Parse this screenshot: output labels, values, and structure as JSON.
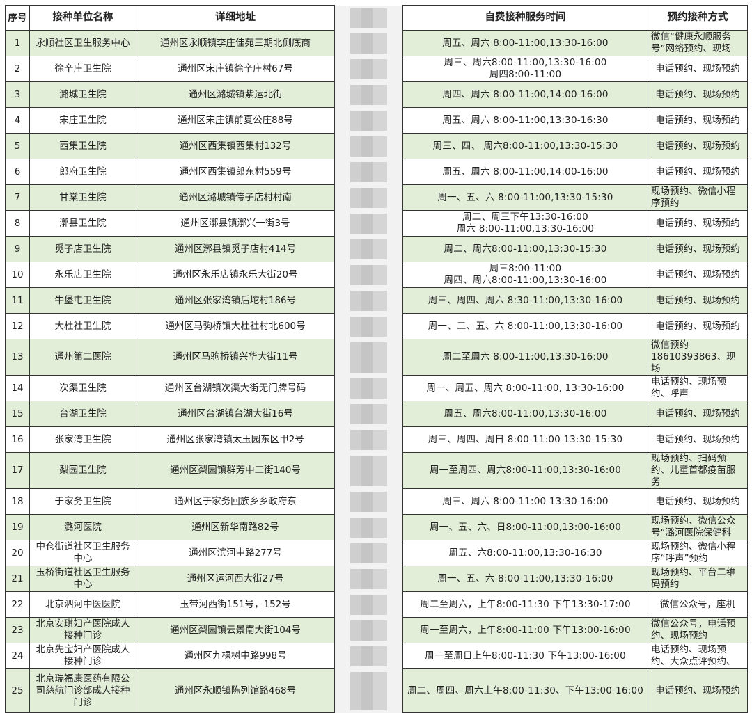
{
  "headers": {
    "seq": "序号",
    "name": "接种单位名称",
    "address": "详细地址",
    "phone": "",
    "time": "自费接种服务时间",
    "method": "预约接种方式"
  },
  "colors": {
    "row_green": "#e3eed9",
    "border": "#333333"
  },
  "rows": [
    {
      "seq": "1",
      "name": "永顺社区卫生服务中心",
      "address": "通州区永顺镇李庄佳苑三期北侧底商",
      "time": "周五、周六 8:00-11:00,13:30-16:00",
      "method": "微信“健康永顺服务号”网络预约、现场"
    },
    {
      "seq": "2",
      "name": "徐辛庄卫生院",
      "address": "通州区宋庄镇徐辛庄村67号",
      "time": "周三、周六8:00-11:00,13:30-16:00\n周四8:00-11:00",
      "method": "电话预约、现场预约"
    },
    {
      "seq": "3",
      "name": "潞城卫生院",
      "address": "通州区潞城镇紫运北街",
      "time": "周四、周六 8:00-11:00,14:00-16:00",
      "method": "电话预约、现场预约"
    },
    {
      "seq": "4",
      "name": "宋庄卫生院",
      "address": "通州区宋庄镇前夏公庄88号",
      "time": "周五、周六 8:00-11:00,13:30-16:30",
      "method": "电话预约、现场预约"
    },
    {
      "seq": "5",
      "name": "西集卫生院",
      "address": "通州区西集镇西集村132号",
      "time": "周三、四、 周六8:00-11:00,13:30-15:30",
      "method": "电话预约、现场预约"
    },
    {
      "seq": "6",
      "name": "郎府卫生院",
      "address": "通州区西集镇郎东村559号",
      "time": "周五、周六 8:00-11:00,14:00-16:00",
      "method": "电话预约、现场预约"
    },
    {
      "seq": "7",
      "name": "甘棠卫生院",
      "address": "通州区潞城镇侉子店村村南",
      "time": "周一、五、六 8:00-11:00,13:30-15:30",
      "method": "现场预约、微信小程序预约"
    },
    {
      "seq": "8",
      "name": "漷县卫生院",
      "address": "通州区漷县镇漷兴一街3号",
      "time": "周二、周三下午13:30-16:00\n周六 8:00-11:00,13:30-16:00",
      "method": "电话预约、现场预约"
    },
    {
      "seq": "9",
      "name": "觅子店卫生院",
      "address": "通州区漷县镇觅子店村414号",
      "time": "周二、周六8:00-11:00,13:30-15:30",
      "method": "电话预约、现场预约"
    },
    {
      "seq": "10",
      "name": "永乐店卫生院",
      "address": "通州区永乐店镇永乐大街20号",
      "time": "周三8:00-11:00\n周四、周六8:00-11:00,13:30-16:00",
      "method": "电话预约、现场预约"
    },
    {
      "seq": "11",
      "name": "牛堡屯卫生院",
      "address": "通州区张家湾镇后坨村186号",
      "time": "周三、周四、周六 8:30-11:00,13:30-16:00",
      "method": "电话预约、现场预约"
    },
    {
      "seq": "12",
      "name": "大杜社卫生院",
      "address": "通州区马驹桥镇大杜社村北600号",
      "time": "周一、二、五、六  8:00-11:00,13:30-16:00",
      "method": "电话预约、现场预约"
    },
    {
      "seq": "13",
      "name": "通州第二医院",
      "address": "通州区马驹桥镇兴华大街11号",
      "time": "周二至周六 8:00-11:00,13:30-16:00",
      "method": "微信预约\n18610393863、现场"
    },
    {
      "seq": "14",
      "name": "次渠卫生院",
      "address": "通州区台湖镇次渠大街无门牌号码",
      "time": "周一、周五、周六 8:00-11:00, 13:30-16:00",
      "method": "电话预约、现场预约、呼声"
    },
    {
      "seq": "15",
      "name": "台湖卫生院",
      "address": "通州区台湖镇台湖大街16号",
      "time": "周五、周六8:00-11:00,13:30-16:00",
      "method": "电话预约、现场预约"
    },
    {
      "seq": "16",
      "name": "张家湾卫生院",
      "address": "通州区张家湾镇太玉园东区甲2号",
      "time": "周三、周四、周日 8:00-11:00   13:30-15:30",
      "method": "电话预约、现场预约"
    },
    {
      "seq": "17",
      "name": "梨园卫生院",
      "address": "通州区梨园镇群芳中二街140号",
      "time": "周一至周四、周六8:00-11:00,13:30-16:00",
      "method": "现场预约、扫码预约、儿童首都疫苗服务"
    },
    {
      "seq": "18",
      "name": "于家务卫生院",
      "address": "通州区于家务回族乡乡政府东",
      "time": "周三、周六 8:00-11:00 13:30-16:00",
      "method": "电话预约、现场预约"
    },
    {
      "seq": "19",
      "name": "潞河医院",
      "address": "通州区新华南路82号",
      "time": "周一、五、六、日8:00-11:00,13:00-16:00",
      "method": "现场预约、微信公众号“潞河医院保健科"
    },
    {
      "seq": "20",
      "name": "中仓街道社区卫生服务中心",
      "address": "通州区滨河中路277号",
      "time": "周五、六8:00-11:00,13:30-16:30",
      "method": "现场预约、微信小程序“呼声”预约"
    },
    {
      "seq": "21",
      "name": "玉桥街道社区卫生服务中心",
      "address": "通州区运河西大街27号",
      "time": "周一、五、六 8:00-11:00,13:30-16:00",
      "method": "现场预约、平台二维码预约"
    },
    {
      "seq": "22",
      "name": "北京泗河中医医院",
      "address": "玉带河西街151号，152号",
      "time": "周二至周六，上午8:00-11:30 下午13:30-17:00",
      "method": "微信公众号，座机"
    },
    {
      "seq": "23",
      "name": "北京安琪妇产医院成人接种门诊",
      "address": "通州区梨园镇云景南大街104号",
      "time": "周一至周六，上午8:00-11:00 下午13:00-16:00",
      "method": "微信公众号，电话预约、现场预约"
    },
    {
      "seq": "24",
      "name": "北京先宝妇产医院成人接种门诊",
      "address": "通州区九棵树中路998号",
      "time": "周一至周日上午8:00-11:30 下午13:00-16:00",
      "method": "电话预约、现场预约、大众点评预约、"
    },
    {
      "seq": "25",
      "name": "北京瑞福康医药有限公司慈航门诊部成人接种门诊",
      "address": "通州区永顺镇陈列馆路468号",
      "time": "周二、周四、周六上午8:00-11:30、下午13:00-16:00",
      "method": "电话预约、现场预约"
    }
  ]
}
